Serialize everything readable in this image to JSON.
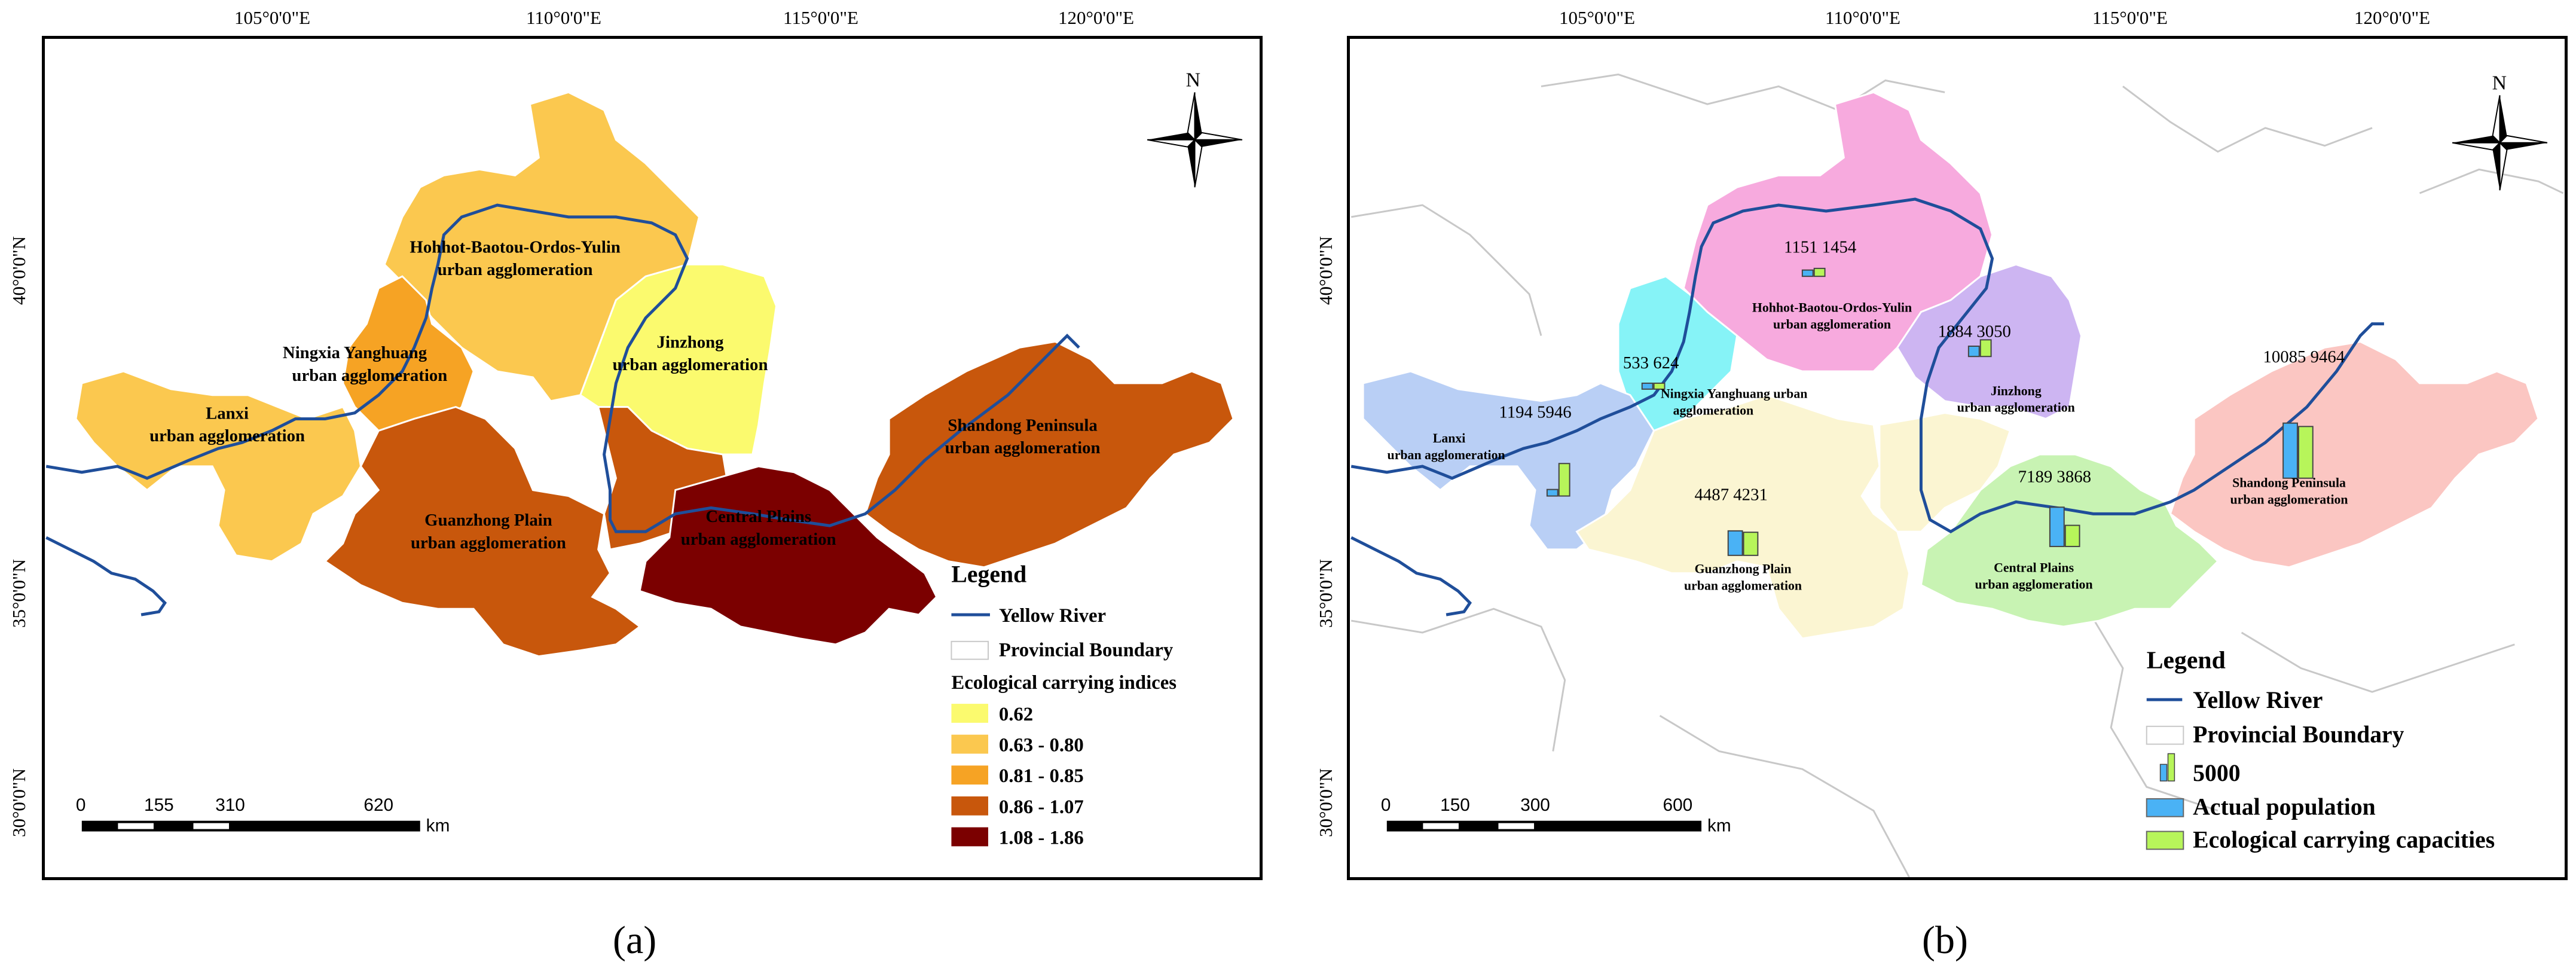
{
  "panel_a": {
    "longitude_labels": [
      "105°0'0\"E",
      "110°0'0\"E",
      "115°0'0\"E",
      "120°0'0\"E"
    ],
    "latitude_labels": [
      "40°0'0\"N",
      "35°0'0\"N",
      "30°0'0\"N"
    ],
    "north_label": "N",
    "regions": [
      {
        "name_line1": "Hohhot-Baotou-Ordos-Yulin",
        "name_line2": "urban agglomeration",
        "index_class": "0.63 - 0.80",
        "color": "#fbc84f"
      },
      {
        "name_line1": "Ningxia Yanghuang",
        "name_line2": "urban agglomeration",
        "index_class": "0.81 - 0.85",
        "color": "#f6a324"
      },
      {
        "name_line1": "Lanxi",
        "name_line2": "urban agglomeration",
        "index_class": "0.63 - 0.80",
        "color": "#fbc84f"
      },
      {
        "name_line1": "Jinzhong",
        "name_line2": "urban agglomeration",
        "index_class": "0.62",
        "color": "#fbfa6e"
      },
      {
        "name_line1": "Guanzhong Plain",
        "name_line2": "urban agglomeration",
        "index_class": "0.86 - 1.07",
        "color": "#c8570c"
      },
      {
        "name_line1": "Central Plains",
        "name_line2": "urban agglomeration",
        "index_class": "1.08 - 1.86",
        "color": "#7b0000"
      },
      {
        "name_line1": "Shandong Peninsula",
        "name_line2": "urban agglomeration",
        "index_class": "0.86 - 1.07",
        "color": "#c8570c"
      }
    ],
    "legend": {
      "title": "Legend",
      "yellow_river": "Yellow River",
      "provincial_boundary": "Provincial Boundary",
      "indices_title": "Ecological carrying indices",
      "classes": [
        {
          "label": "0.62",
          "color": "#fbfa6e"
        },
        {
          "label": "0.63 - 0.80",
          "color": "#fbc84f"
        },
        {
          "label": "0.81 - 0.85",
          "color": "#f6a324"
        },
        {
          "label": "0.86 - 1.07",
          "color": "#c8570c"
        },
        {
          "label": "1.08 - 1.86",
          "color": "#7b0000"
        }
      ]
    },
    "scale_bar": {
      "ticks": [
        "0",
        "155",
        "310",
        "620"
      ],
      "unit": "km"
    },
    "caption": "(a)"
  },
  "panel_b": {
    "longitude_labels": [
      "105°0'0\"E",
      "110°0'0\"E",
      "115°0'0\"E",
      "120°0'0\"E"
    ],
    "latitude_labels": [
      "40°0'0\"N",
      "35°0'0\"N",
      "30°0'0\"N"
    ],
    "north_label": "N",
    "regions": [
      {
        "name_line1": "Hohhot-Baotou-Ordos-Yulin",
        "name_line2": "urban agglomeration",
        "actual_population": 1151,
        "ecological_capacity": 1454,
        "color": "#f7aade"
      },
      {
        "name_line1": "Ningxia Yanghuang urban",
        "name_line2": "agglomeration",
        "actual_population": 533,
        "ecological_capacity": 624,
        "color": "#86f3f7"
      },
      {
        "name_line1": "Lanxi",
        "name_line2": "urban agglomeration",
        "actual_population": 1194,
        "ecological_capacity": 5946,
        "color": "#b9cff5"
      },
      {
        "name_line1": "Jinzhong",
        "name_line2": "urban agglomeration",
        "actual_population": 1884,
        "ecological_capacity": 3050,
        "color": "#cdb5f2"
      },
      {
        "name_line1": "Guanzhong Plain",
        "name_line2": "urban agglomeration",
        "actual_population": 4487,
        "ecological_capacity": 4231,
        "color": "#fbf5d2"
      },
      {
        "name_line1": "Central Plains",
        "name_line2": "urban agglomeration",
        "actual_population": 7189,
        "ecological_capacity": 3868,
        "color": "#c8f3b3"
      },
      {
        "name_line1": "Shandong Peninsula",
        "name_line2": "urban agglomeration",
        "actual_population": 10085,
        "ecological_capacity": 9464,
        "color": "#fbc6c2"
      }
    ],
    "value_labels": [
      "1151 1454",
      "533 624",
      "1194 5946",
      "1884 3050",
      "4487 4231",
      "7189 3868",
      "10085 9464"
    ],
    "legend": {
      "title": "Legend",
      "yellow_river": "Yellow River",
      "provincial_boundary": "Provincial Boundary",
      "symbol_value": "5000",
      "actual_population": "Actual population",
      "ecological_capacity": "Ecological carrying capacities",
      "population_color": "#4ab2f5",
      "capacity_color": "#b7f55a"
    },
    "scale_bar": {
      "ticks": [
        "0",
        "150",
        "300",
        "600"
      ],
      "unit": "km"
    },
    "caption": "(b)"
  },
  "colors": {
    "river": "#1f4e9a",
    "boundary": "#c8c8c8"
  }
}
